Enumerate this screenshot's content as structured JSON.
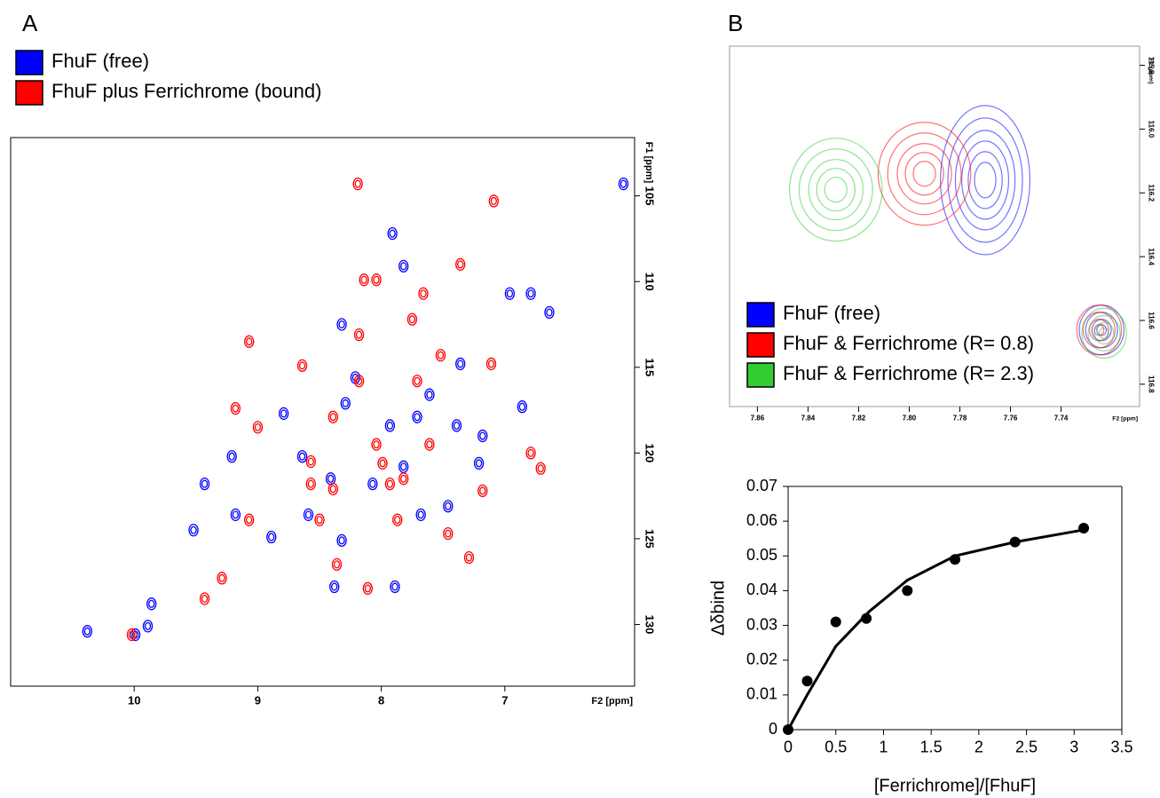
{
  "chart_data": [
    {
      "type": "scatter",
      "label": "A",
      "legend": "top-left",
      "xlabel": "F2 [ppm]",
      "ylabel": "F1 [ppm]",
      "xlim": [
        11,
        5.95
      ],
      "xticks": [
        10,
        9,
        8,
        7
      ],
      "ylim": [
        133.6,
        101.6
      ],
      "yticks": [
        105,
        110,
        115,
        120,
        125,
        130
      ],
      "series": [
        {
          "name": "FhuF (free)",
          "color": "#0000ff",
          "x": [
            7.91,
            9.99,
            10.38,
            8.41,
            8.38,
            8.59,
            8.32,
            7.89,
            7.46,
            7.21,
            6.86,
            6.79,
            7.36,
            7.71,
            8.21,
            8.64,
            8.79,
            9.21,
            9.43,
            9.52,
            9.18,
            8.89,
            9.86,
            8.07,
            7.82,
            7.68,
            6.96,
            6.64,
            6.04,
            9.89,
            7.61,
            8.29,
            7.39,
            7.93,
            7.18,
            7.82,
            8.32
          ],
          "values": [
            107.2,
            130.6,
            130.4,
            121.5,
            127.8,
            123.6,
            125.1,
            127.8,
            123.1,
            120.6,
            117.3,
            110.7,
            114.8,
            117.9,
            115.6,
            120.2,
            117.7,
            120.2,
            121.8,
            124.5,
            123.6,
            124.9,
            128.8,
            121.8,
            120.8,
            123.6,
            110.7,
            111.8,
            104.3,
            130.1,
            116.6,
            117.1,
            118.4,
            118.4,
            119.0,
            109.1,
            112.5
          ]
        },
        {
          "name": "FhuF plus Ferrichrome (bound)",
          "color": "#ff0000",
          "x": [
            8.19,
            7.09,
            8.14,
            8.04,
            7.66,
            7.36,
            7.75,
            8.18,
            7.52,
            7.11,
            8.64,
            8.04,
            8.18,
            7.71,
            8.39,
            9.0,
            8.57,
            8.57,
            8.39,
            7.82,
            7.93,
            7.18,
            6.79,
            6.71,
            8.5,
            8.36,
            8.11,
            7.87,
            9.07,
            10.02,
            9.43,
            9.29,
            7.29,
            7.46,
            9.07,
            9.18,
            7.61,
            7.99
          ],
          "values": [
            104.3,
            105.3,
            109.9,
            109.9,
            110.7,
            109.0,
            112.2,
            113.1,
            114.3,
            114.8,
            114.9,
            119.5,
            115.8,
            115.8,
            117.9,
            118.5,
            120.5,
            121.8,
            122.1,
            121.5,
            121.8,
            122.2,
            120.0,
            120.9,
            123.9,
            126.5,
            127.9,
            123.9,
            123.9,
            130.6,
            128.5,
            127.3,
            126.1,
            124.7,
            113.5,
            117.4,
            119.5,
            120.6
          ]
        }
      ]
    },
    {
      "type": "contour",
      "label": "B",
      "legend": "bottom-left",
      "xlabel": "F2 [ppm]",
      "ylabel": "F1 [ppm]",
      "xlim": [
        7.871,
        7.709
      ],
      "xticks": [
        7.86,
        7.84,
        7.82,
        {
          "value": 7.8,
          "label": "7.80"
        },
        7.78,
        7.76,
        7.74
      ],
      "ylim": [
        116.87,
        115.74
      ],
      "yticks": [
        115.8,
        {
          "value": 116,
          "label": "116.0"
        },
        116.2,
        116.4,
        116.6,
        116.8
      ],
      "series": [
        {
          "name": "FhuF (free)",
          "color": "#0000ff",
          "x": [
            7.77,
            7.724
          ],
          "values": [
            116.16,
            116.63
          ]
        },
        {
          "name": "FhuF & Ferrichrome (R= 0.8)",
          "color": "#ff0000",
          "x": [
            7.794,
            7.725
          ],
          "values": [
            116.14,
            116.63
          ]
        },
        {
          "name": "FhuF & Ferrichrome (R= 2.3)",
          "color": "#33cc33",
          "x": [
            7.829,
            7.723
          ],
          "values": [
            116.19,
            116.64
          ]
        }
      ]
    },
    {
      "type": "line",
      "xlabel": "[Ferrichrome]/[FhuF]",
      "ylabel": "Δδbind",
      "xlim": [
        0,
        3.5
      ],
      "xticks": [
        0,
        0.5,
        1,
        1.5,
        2,
        2.5,
        3,
        3.5
      ],
      "ylim": [
        0,
        0.07
      ],
      "yticks": [
        0,
        0.01,
        0.02,
        0.03,
        0.04,
        0.05,
        0.06,
        0.07
      ],
      "series": [
        {
          "color": "#000000",
          "style": "line",
          "x": [
            0,
            0.2,
            0.5,
            0.85,
            1.25,
            1.75,
            2.38,
            3.1
          ],
          "values": [
            0,
            0.01,
            0.024,
            0.034,
            0.043,
            0.05,
            0.054,
            0.0575
          ]
        },
        {
          "color": "#000000",
          "style": "marker",
          "x": [
            0,
            0.2,
            0.5,
            0.82,
            1.25,
            1.75,
            2.38,
            3.1
          ],
          "values": [
            0,
            0.014,
            0.031,
            0.032,
            0.04,
            0.049,
            0.054,
            0.058
          ]
        }
      ]
    }
  ]
}
